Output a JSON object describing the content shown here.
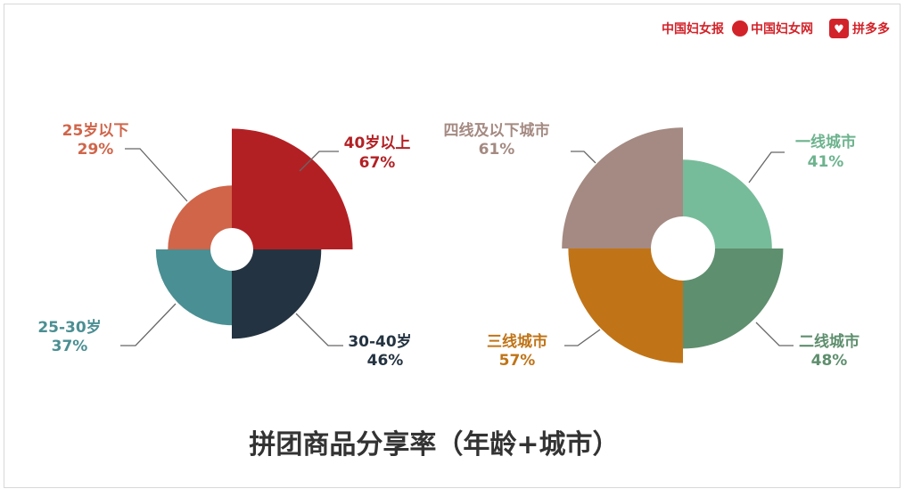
{
  "logos": {
    "logo1": "中国妇女报",
    "logo2": "中国妇女网",
    "logo3": "拼多多",
    "color": "#d2232a"
  },
  "chart_data": [
    {
      "type": "polar-area",
      "title": "拼团商品分享率（年龄+城市）",
      "slices": [
        {
          "label": "40岁以上",
          "value": 67,
          "value_text": "67%",
          "color": "#b32024",
          "quadrant": "top-right"
        },
        {
          "label": "30-40岁",
          "value": 46,
          "value_text": "46%",
          "color": "#243341",
          "quadrant": "bottom-right"
        },
        {
          "label": "25-30岁",
          "value": 37,
          "value_text": "37%",
          "color": "#4a8f93",
          "quadrant": "bottom-left"
        },
        {
          "label": "25岁以下",
          "value": 29,
          "value_text": "29%",
          "color": "#d0654a",
          "quadrant": "top-left"
        }
      ]
    },
    {
      "type": "polar-area",
      "slices": [
        {
          "label": "一线城市",
          "value": 41,
          "value_text": "41%",
          "color": "#77bc9a",
          "quadrant": "top-right"
        },
        {
          "label": "二线城市",
          "value": 48,
          "value_text": "48%",
          "color": "#5e8f6e",
          "quadrant": "bottom-right"
        },
        {
          "label": "三线城市",
          "value": 57,
          "value_text": "57%",
          "color": "#c07417",
          "quadrant": "bottom-left"
        },
        {
          "label": "四线及以下城市",
          "value": 61,
          "value_text": "61%",
          "color": "#a48a82",
          "quadrant": "top-left"
        }
      ]
    }
  ]
}
